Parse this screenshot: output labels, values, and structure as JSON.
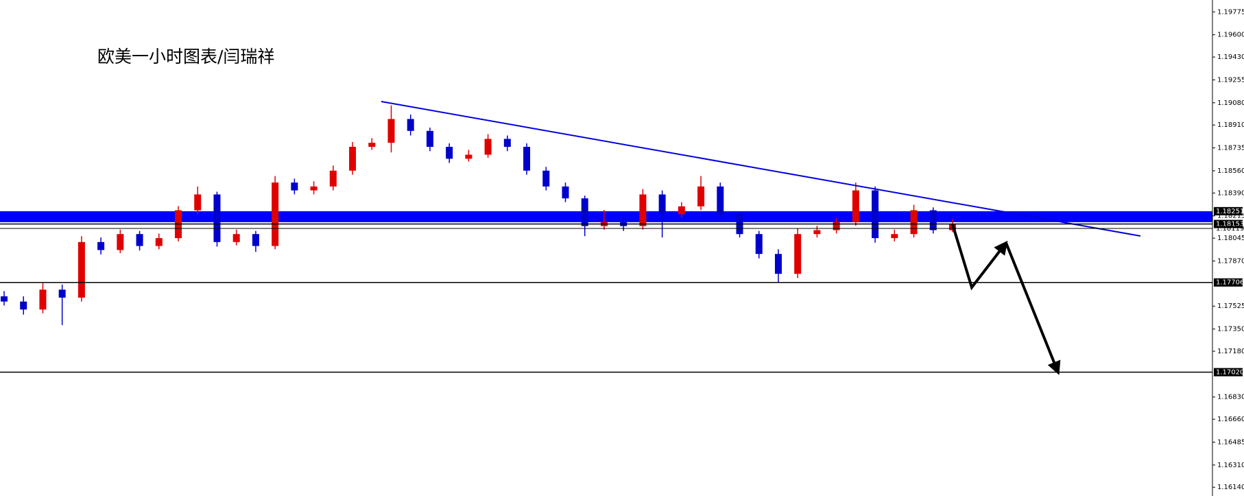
{
  "chart_data": {
    "type": "candlestick",
    "title": "欧美一小时图表/闫瑞祥",
    "ylim": [
      1.16073,
      1.19866
    ],
    "yticks": [
      1.19775,
      {
        "value": 1.196,
        "label": "1.19600"
      },
      {
        "value": 1.1943,
        "label": "1.19430"
      },
      1.19255,
      {
        "value": 1.1908,
        "label": "1.19080"
      },
      {
        "value": 1.1891,
        "label": "1.18910"
      },
      1.18735,
      {
        "value": 1.1856,
        "label": "1.18560"
      },
      {
        "value": 1.1839,
        "label": "1.18390"
      },
      1.18215,
      1.18045,
      {
        "value": 1.1787,
        "label": "1.17870"
      },
      1.17525,
      {
        "value": 1.1735,
        "label": "1.17350"
      },
      {
        "value": 1.1718,
        "label": "1.17180"
      },
      {
        "value": 1.1683,
        "label": "1.16830"
      },
      {
        "value": 1.1666,
        "label": "1.16660"
      },
      1.16485,
      {
        "value": 1.1631,
        "label": "1.16310"
      },
      {
        "value": 1.1614,
        "label": "1.16140"
      }
    ],
    "up_color": "#e00000",
    "down_color": "#0000cc",
    "zone": [
      1.18167,
      1.18251
    ],
    "zone_color": "#0000ff",
    "levels": [
      {
        "value": 1.18251,
        "boxed": true,
        "line": false
      },
      {
        "value": 1.18153,
        "boxed": true,
        "line": true
      },
      {
        "value": 1.18119,
        "boxed": false,
        "line": true
      },
      {
        "value": 1.17706,
        "boxed": true,
        "line": true
      },
      {
        "value": 1.1702,
        "label": "1.17020",
        "boxed": true,
        "line": true
      }
    ],
    "candles": [
      [
        1.176,
        1.1764,
        1.1753,
        1.1756
      ],
      [
        1.1756,
        1.176,
        1.1746,
        1.17499
      ],
      [
        1.17499,
        1.177,
        1.1747,
        1.17651
      ],
      [
        1.17651,
        1.1769,
        1.1738,
        1.1759
      ],
      [
        1.1759,
        1.1806,
        1.1756,
        1.18015
      ],
      [
        1.18015,
        1.1805,
        1.1792,
        1.17954
      ],
      [
        1.17954,
        1.1811,
        1.1793,
        1.18076
      ],
      [
        1.18076,
        1.181,
        1.1795,
        1.17985
      ],
      [
        1.17985,
        1.1808,
        1.1796,
        1.18045
      ],
      [
        1.18045,
        1.1829,
        1.1802,
        1.18258
      ],
      [
        1.18258,
        1.1844,
        1.1823,
        1.18379
      ],
      [
        1.18379,
        1.184,
        1.1798,
        1.18015
      ],
      [
        1.18015,
        1.1811,
        1.1799,
        1.18076
      ],
      [
        1.18076,
        1.181,
        1.1794,
        1.17985
      ],
      [
        1.17985,
        1.1852,
        1.1796,
        1.1847
      ],
      [
        1.1847,
        1.185,
        1.1838,
        1.1841
      ],
      [
        1.1841,
        1.1848,
        1.1838,
        1.1844
      ],
      [
        1.1844,
        1.186,
        1.1841,
        1.18561
      ],
      [
        1.18561,
        1.1878,
        1.1853,
        1.18743
      ],
      [
        1.18743,
        1.1881,
        1.1872,
        1.18774
      ],
      [
        1.18774,
        1.1906,
        1.187,
        1.18956
      ],
      [
        1.18956,
        1.1899,
        1.1883,
        1.18865
      ],
      [
        1.18865,
        1.1889,
        1.1871,
        1.18743
      ],
      [
        1.18743,
        1.1877,
        1.1862,
        1.18652
      ],
      [
        1.18652,
        1.1872,
        1.1863,
        1.18683
      ],
      [
        1.18683,
        1.1884,
        1.1866,
        1.18804
      ],
      [
        1.18804,
        1.1883,
        1.1871,
        1.18743
      ],
      [
        1.18743,
        1.1877,
        1.1853,
        1.18561
      ],
      [
        1.18561,
        1.1859,
        1.1841,
        1.1844
      ],
      [
        1.1844,
        1.1847,
        1.1832,
        1.18349
      ],
      [
        1.18349,
        1.1837,
        1.1806,
        1.18137
      ],
      [
        1.18137,
        1.1826,
        1.1811,
        1.18167
      ],
      [
        1.18167,
        1.182,
        1.181,
        1.18137
      ],
      [
        1.18137,
        1.1842,
        1.1811,
        1.18379
      ],
      [
        1.18379,
        1.1841,
        1.1805,
        1.18228
      ],
      [
        1.18228,
        1.1832,
        1.182,
        1.18288
      ],
      [
        1.18288,
        1.1852,
        1.1826,
        1.1844
      ],
      [
        1.1844,
        1.1847,
        1.182,
        1.18228
      ],
      [
        1.18228,
        1.1825,
        1.1805,
        1.18076
      ],
      [
        1.18076,
        1.181,
        1.1789,
        1.17924
      ],
      [
        1.17924,
        1.1796,
        1.17706,
        1.17772
      ],
      [
        1.17772,
        1.1812,
        1.1774,
        1.18076
      ],
      [
        1.18076,
        1.1814,
        1.1805,
        1.18106
      ],
      [
        1.18106,
        1.182,
        1.1808,
        1.18167
      ],
      [
        1.18167,
        1.1847,
        1.1814,
        1.1841
      ],
      [
        1.1841,
        1.1844,
        1.1801,
        1.18045
      ],
      [
        1.18045,
        1.1811,
        1.1802,
        1.18076
      ],
      [
        1.18076,
        1.183,
        1.1805,
        1.18258
      ],
      [
        1.18258,
        1.1828,
        1.1808,
        1.18106
      ],
      [
        1.18106,
        1.1819,
        1.1809,
        1.18153
      ]
    ]
  }
}
